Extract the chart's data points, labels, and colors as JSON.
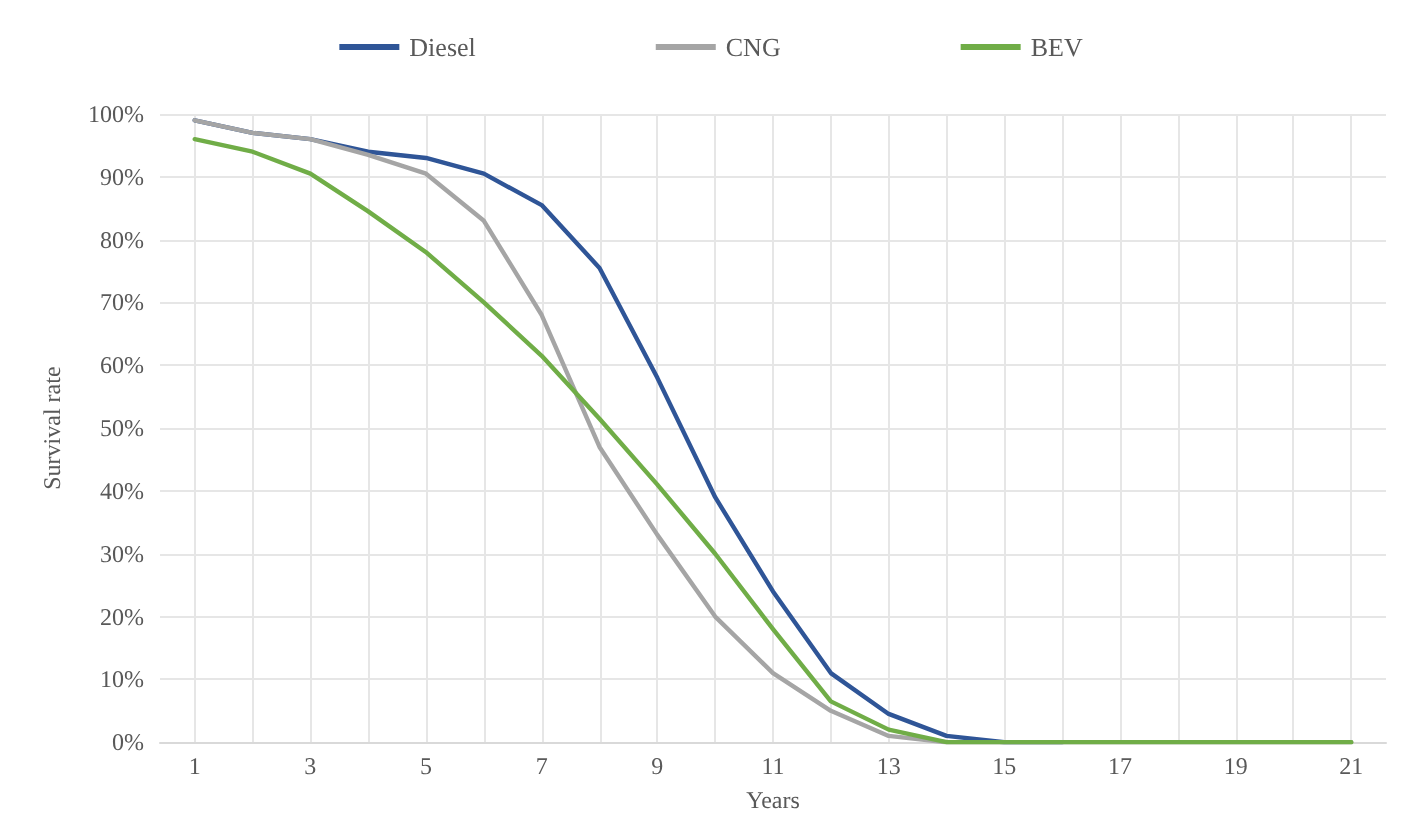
{
  "chart_data": {
    "type": "line",
    "xlabel": "Years",
    "ylabel": "Survival rate",
    "x": [
      1,
      2,
      3,
      4,
      5,
      6,
      7,
      8,
      9,
      10,
      11,
      12,
      13,
      14,
      15,
      16,
      17,
      18,
      19,
      20,
      21
    ],
    "xlim": [
      0.4,
      21.6
    ],
    "xticks": [
      1,
      {
        "value": 2,
        "label": null
      },
      3,
      {
        "value": 4,
        "label": null
      },
      5,
      {
        "value": 6,
        "label": null
      },
      7,
      {
        "value": 8,
        "label": null
      },
      9,
      {
        "value": 10,
        "label": null
      },
      11,
      {
        "value": 12,
        "label": null
      },
      13,
      {
        "value": 14,
        "label": null
      },
      15,
      {
        "value": 16,
        "label": null
      },
      17,
      {
        "value": 18,
        "label": null
      },
      19,
      {
        "value": 20,
        "label": null
      },
      21
    ],
    "series": [
      {
        "name": "Diesel",
        "color": "#2f5597",
        "values": [
          99,
          97,
          96,
          94,
          93,
          90.5,
          85.5,
          75.5,
          58,
          39,
          24,
          11,
          4.5,
          1,
          0,
          0,
          null,
          null,
          null,
          null,
          null
        ]
      },
      {
        "name": "CNG",
        "color": "#a5a5a5",
        "values": [
          99,
          97,
          96,
          93.5,
          90.5,
          83,
          68,
          47,
          33,
          20,
          11,
          5,
          1,
          0,
          0,
          0,
          0,
          0,
          0,
          0,
          0
        ]
      },
      {
        "name": "BEV",
        "color": "#70ad47",
        "values": [
          96,
          94,
          90.5,
          84.5,
          78,
          70,
          61.5,
          51.5,
          41,
          30,
          18,
          6.5,
          2,
          0,
          0,
          0,
          0,
          0,
          0,
          0,
          0
        ]
      }
    ],
    "ylim": [
      0,
      100
    ],
    "yticks": [
      {
        "value": 0,
        "label": "0%"
      },
      {
        "value": 10,
        "label": "10%"
      },
      {
        "value": 20,
        "label": "20%"
      },
      {
        "value": 30,
        "label": "30%"
      },
      {
        "value": 40,
        "label": "40%"
      },
      {
        "value": 50,
        "label": "50%"
      },
      {
        "value": 60,
        "label": "60%"
      },
      {
        "value": 70,
        "label": "70%"
      },
      {
        "value": 80,
        "label": "80%"
      },
      {
        "value": 90,
        "label": "90%"
      },
      {
        "value": 100,
        "label": "100%"
      }
    ],
    "grid": true,
    "legend": "top",
    "marker": "none",
    "line_style": "solid"
  }
}
